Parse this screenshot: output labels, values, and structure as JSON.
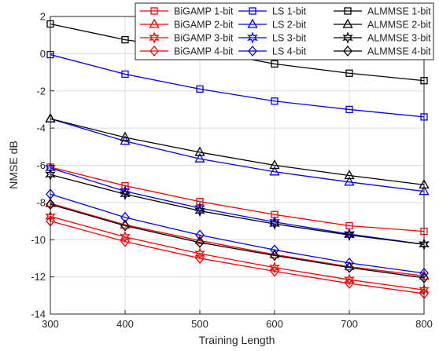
{
  "chart_data": {
    "type": "line",
    "title": "",
    "xlabel": "Training Length",
    "ylabel": "NMSE dB",
    "xlim": [
      300,
      800
    ],
    "ylim": [
      -14,
      2
    ],
    "x_ticks": [
      "300",
      "400",
      "500",
      "600",
      "700",
      "800"
    ],
    "y_ticks": [
      "2",
      "0",
      "-2",
      "-4",
      "-6",
      "-8",
      "-10",
      "-12",
      "-14"
    ],
    "grid": true,
    "legend_position": "top-right",
    "x": [
      300,
      400,
      500,
      600,
      700,
      800
    ],
    "series": [
      {
        "name": "BiGAMP 1-bit",
        "color": "#ff0000",
        "marker": "square",
        "values": [
          -6.1,
          -7.1,
          -7.95,
          -8.65,
          -9.25,
          -9.55
        ]
      },
      {
        "name": "BiGAMP 2-bit",
        "color": "#ff0000",
        "marker": "triangle",
        "values": [
          -8.05,
          -9.2,
          -10.05,
          -10.8,
          -11.45,
          -11.95
        ]
      },
      {
        "name": "BiGAMP 3-bit",
        "color": "#ff0000",
        "marker": "hexagram",
        "values": [
          -8.75,
          -9.85,
          -10.75,
          -11.5,
          -12.15,
          -12.7
        ]
      },
      {
        "name": "BiGAMP 4-bit",
        "color": "#ff0000",
        "marker": "diamond",
        "values": [
          -9.0,
          -10.1,
          -11.0,
          -11.7,
          -12.35,
          -12.9
        ]
      },
      {
        "name": "LS 1-bit",
        "color": "#0000ff",
        "marker": "square",
        "values": [
          -0.05,
          -1.1,
          -1.9,
          -2.55,
          -3.0,
          -3.4
        ]
      },
      {
        "name": "LS 2-bit",
        "color": "#0000ff",
        "marker": "triangle",
        "values": [
          -3.5,
          -4.7,
          -5.65,
          -6.35,
          -6.9,
          -7.4
        ]
      },
      {
        "name": "LS 3-bit",
        "color": "#0000ff",
        "marker": "hexagram",
        "values": [
          -6.15,
          -7.4,
          -8.3,
          -9.05,
          -9.7,
          -10.25
        ]
      },
      {
        "name": "LS 4-bit",
        "color": "#0000ff",
        "marker": "diamond",
        "values": [
          -7.55,
          -8.8,
          -9.75,
          -10.55,
          -11.25,
          -11.8
        ]
      },
      {
        "name": "ALMMSE 1-bit",
        "color": "#000000",
        "marker": "square",
        "values": [
          1.6,
          0.75,
          0.2,
          -0.55,
          -1.05,
          -1.45
        ]
      },
      {
        "name": "ALMMSE 2-bit",
        "color": "#000000",
        "marker": "triangle",
        "values": [
          -3.5,
          -4.5,
          -5.3,
          -6.0,
          -6.55,
          -7.05
        ]
      },
      {
        "name": "ALMMSE 3-bit",
        "color": "#000000",
        "marker": "hexagram",
        "values": [
          -6.5,
          -7.55,
          -8.45,
          -9.15,
          -9.75,
          -10.25
        ]
      },
      {
        "name": "ALMMSE 4-bit",
        "color": "#000000",
        "marker": "diamond",
        "values": [
          -8.1,
          -9.25,
          -10.15,
          -10.85,
          -11.5,
          -12.05
        ]
      }
    ]
  }
}
